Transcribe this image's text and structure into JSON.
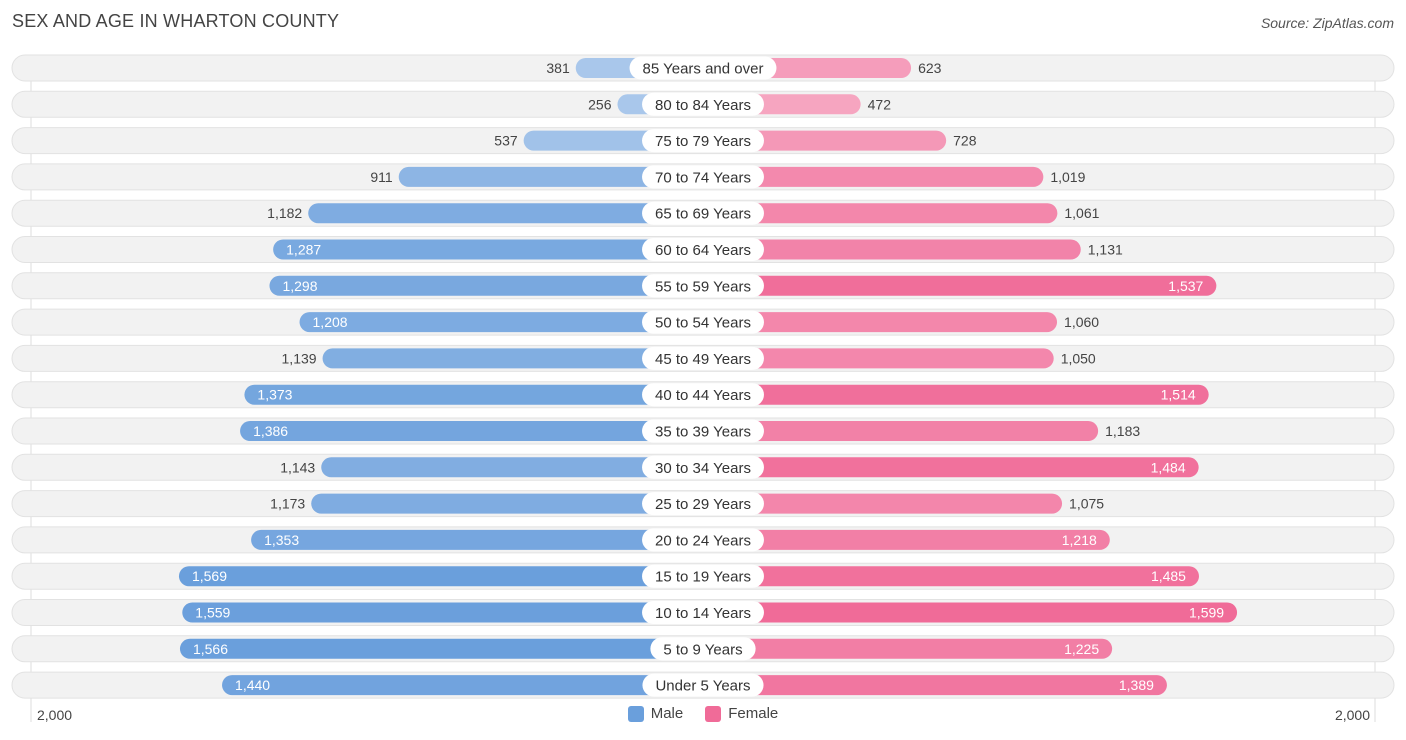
{
  "header": {
    "title": "SEX AND AGE IN WHARTON COUNTY",
    "source": "Source: ZipAtlas.com"
  },
  "legend": {
    "male_label": "Male",
    "female_label": "Female"
  },
  "axis": {
    "left_label": "2,000",
    "right_label": "2,000"
  },
  "colors": {
    "male_light": "#a9c7eb",
    "male_dark": "#6a9fdc",
    "female_light": "#f6a9c3",
    "female_dark": "#f06b98",
    "row_bg": "#f2f2f2"
  },
  "chart_data": {
    "type": "bar",
    "orientation": "horizontal-diverging",
    "title": "SEX AND AGE IN WHARTON COUNTY",
    "xlim": [
      -2000,
      2000
    ],
    "categories": [
      "85 Years and over",
      "80 to 84 Years",
      "75 to 79 Years",
      "70 to 74 Years",
      "65 to 69 Years",
      "60 to 64 Years",
      "55 to 59 Years",
      "50 to 54 Years",
      "45 to 49 Years",
      "40 to 44 Years",
      "35 to 39 Years",
      "30 to 34 Years",
      "25 to 29 Years",
      "20 to 24 Years",
      "15 to 19 Years",
      "10 to 14 Years",
      "5 to 9 Years",
      "Under 5 Years"
    ],
    "series": [
      {
        "name": "Male",
        "values": [
          381,
          256,
          537,
          911,
          1182,
          1287,
          1298,
          1208,
          1139,
          1373,
          1386,
          1143,
          1173,
          1353,
          1569,
          1559,
          1566,
          1440
        ],
        "labels": [
          "381",
          "256",
          "537",
          "911",
          "1,182",
          "1,287",
          "1,298",
          "1,208",
          "1,139",
          "1,373",
          "1,386",
          "1,143",
          "1,173",
          "1,353",
          "1,569",
          "1,559",
          "1,566",
          "1,440"
        ]
      },
      {
        "name": "Female",
        "values": [
          623,
          472,
          728,
          1019,
          1061,
          1131,
          1537,
          1060,
          1050,
          1514,
          1183,
          1484,
          1075,
          1218,
          1485,
          1599,
          1225,
          1389
        ],
        "labels": [
          "623",
          "472",
          "728",
          "1,019",
          "1,061",
          "1,131",
          "1,537",
          "1,060",
          "1,050",
          "1,514",
          "1,183",
          "1,484",
          "1,075",
          "1,218",
          "1,485",
          "1,599",
          "1,225",
          "1,389"
        ]
      }
    ],
    "legend_position": "bottom-center"
  }
}
